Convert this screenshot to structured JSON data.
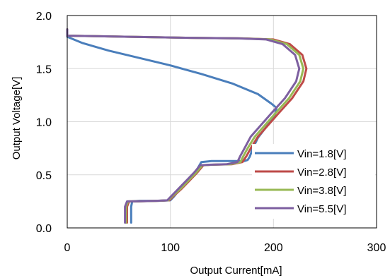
{
  "chart_data": {
    "type": "line",
    "title": "",
    "xlabel": "Output Current[mA]",
    "ylabel": "Output Voltage[V]",
    "xlim": [
      0,
      300
    ],
    "ylim": [
      0,
      2.0
    ],
    "xticks": [
      0,
      100,
      200,
      300
    ],
    "yticks": [
      0.0,
      0.5,
      1.0,
      1.5,
      2.0
    ],
    "xtick_labels": [
      "0",
      "100",
      "200",
      "300"
    ],
    "ytick_labels": [
      "0.0",
      "0.5",
      "1.0",
      "1.5",
      "2.0"
    ],
    "grid": true,
    "legend_position": "right-bottom",
    "series": [
      {
        "name": "Vin=1.8[V]",
        "color": "#4a7ebb",
        "points": [
          [
            0,
            1.87
          ],
          [
            0,
            1.8
          ],
          [
            15,
            1.74
          ],
          [
            40,
            1.67
          ],
          [
            70,
            1.6
          ],
          [
            100,
            1.53
          ],
          [
            130,
            1.45
          ],
          [
            160,
            1.36
          ],
          [
            185,
            1.26
          ],
          [
            198,
            1.17
          ],
          [
            203,
            1.13
          ],
          [
            201,
            1.05
          ],
          [
            193,
            0.95
          ],
          [
            185,
            0.85
          ],
          [
            180,
            0.75
          ],
          [
            177,
            0.67
          ],
          [
            175,
            0.64
          ],
          [
            172,
            0.63
          ],
          [
            140,
            0.63
          ],
          [
            130,
            0.62
          ],
          [
            124,
            0.52
          ],
          [
            115,
            0.42
          ],
          [
            108,
            0.35
          ],
          [
            103,
            0.29
          ],
          [
            100,
            0.26
          ],
          [
            90,
            0.255
          ],
          [
            70,
            0.255
          ],
          [
            63,
            0.25
          ],
          [
            62,
            0.2
          ],
          [
            62,
            0.12
          ],
          [
            62,
            0.05
          ]
        ]
      },
      {
        "name": "Vin=2.8[V]",
        "color": "#be4b48",
        "points": [
          [
            0,
            1.87
          ],
          [
            0,
            1.81
          ],
          [
            60,
            1.8
          ],
          [
            120,
            1.79
          ],
          [
            170,
            1.785
          ],
          [
            200,
            1.775
          ],
          [
            216,
            1.73
          ],
          [
            228,
            1.63
          ],
          [
            232,
            1.5
          ],
          [
            229,
            1.38
          ],
          [
            218,
            1.22
          ],
          [
            205,
            1.08
          ],
          [
            195,
            0.97
          ],
          [
            185,
            0.86
          ],
          [
            178,
            0.75
          ],
          [
            174,
            0.68
          ],
          [
            170,
            0.62
          ],
          [
            160,
            0.6
          ],
          [
            140,
            0.595
          ],
          [
            132,
            0.59
          ],
          [
            126,
            0.52
          ],
          [
            118,
            0.44
          ],
          [
            110,
            0.36
          ],
          [
            103,
            0.3
          ],
          [
            99,
            0.26
          ],
          [
            88,
            0.255
          ],
          [
            68,
            0.25
          ],
          [
            60,
            0.25
          ],
          [
            58,
            0.2
          ],
          [
            58,
            0.12
          ],
          [
            58,
            0.05
          ]
        ]
      },
      {
        "name": "Vin=3.8[V]",
        "color": "#98b954",
        "points": [
          [
            0,
            1.87
          ],
          [
            0,
            1.81
          ],
          [
            60,
            1.8
          ],
          [
            120,
            1.79
          ],
          [
            168,
            1.785
          ],
          [
            197,
            1.775
          ],
          [
            213,
            1.73
          ],
          [
            225,
            1.63
          ],
          [
            229,
            1.5
          ],
          [
            226,
            1.38
          ],
          [
            215,
            1.22
          ],
          [
            202,
            1.08
          ],
          [
            192,
            0.97
          ],
          [
            182,
            0.86
          ],
          [
            175,
            0.75
          ],
          [
            171,
            0.68
          ],
          [
            168,
            0.62
          ],
          [
            158,
            0.6
          ],
          [
            139,
            0.595
          ],
          [
            131,
            0.59
          ],
          [
            125,
            0.52
          ],
          [
            117,
            0.44
          ],
          [
            109,
            0.36
          ],
          [
            102,
            0.3
          ],
          [
            98,
            0.26
          ],
          [
            87,
            0.255
          ],
          [
            67,
            0.25
          ],
          [
            59,
            0.25
          ],
          [
            57,
            0.2
          ],
          [
            57,
            0.12
          ],
          [
            57,
            0.05
          ]
        ]
      },
      {
        "name": "Vin=5.5[V]",
        "color": "#7d5fa0",
        "points": [
          [
            0,
            1.87
          ],
          [
            0,
            1.81
          ],
          [
            60,
            1.8
          ],
          [
            120,
            1.79
          ],
          [
            165,
            1.785
          ],
          [
            193,
            1.775
          ],
          [
            209,
            1.73
          ],
          [
            221,
            1.63
          ],
          [
            225,
            1.5
          ],
          [
            222,
            1.38
          ],
          [
            211,
            1.22
          ],
          [
            198,
            1.08
          ],
          [
            188,
            0.97
          ],
          [
            178,
            0.86
          ],
          [
            172,
            0.75
          ],
          [
            168,
            0.68
          ],
          [
            165,
            0.62
          ],
          [
            155,
            0.6
          ],
          [
            137,
            0.595
          ],
          [
            129,
            0.59
          ],
          [
            123,
            0.52
          ],
          [
            115,
            0.44
          ],
          [
            107,
            0.36
          ],
          [
            101,
            0.3
          ],
          [
            97,
            0.26
          ],
          [
            86,
            0.255
          ],
          [
            66,
            0.25
          ],
          [
            58,
            0.25
          ],
          [
            56,
            0.2
          ],
          [
            56,
            0.12
          ],
          [
            56,
            0.05
          ]
        ]
      }
    ]
  }
}
